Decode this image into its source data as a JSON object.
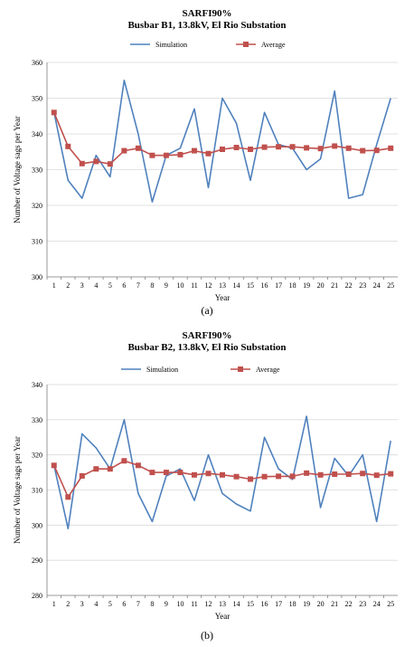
{
  "chart_data": [
    {
      "type": "line",
      "title": "SARFI90%",
      "subtitle": "Busbar B1, 13.8kV, El Rio Substation",
      "caption": "(a)",
      "xlabel": "Year",
      "ylabel": "Number of Voltage sags per Year",
      "x": [
        1,
        2,
        3,
        4,
        5,
        6,
        7,
        8,
        9,
        10,
        11,
        12,
        13,
        14,
        15,
        16,
        17,
        18,
        19,
        20,
        21,
        22,
        23,
        24,
        25
      ],
      "ylim": [
        300,
        360
      ],
      "yticks": [
        300,
        310,
        320,
        330,
        340,
        350,
        360
      ],
      "grid": "horizontal",
      "legend_position": "top",
      "series": [
        {
          "name": "Simulation",
          "color": "#4f81bd",
          "marker": "none",
          "values": [
            346,
            327,
            322,
            334,
            328,
            355,
            340,
            321,
            334,
            336,
            347,
            325,
            350,
            343,
            327,
            346,
            337,
            336,
            330,
            333,
            352,
            322,
            323,
            337,
            350
          ]
        },
        {
          "name": "Average",
          "color": "#c0504d",
          "marker": "square",
          "values": [
            346,
            336.5,
            331.7,
            332.3,
            331.6,
            335.3,
            336,
            334,
            334,
            334.2,
            335.3,
            334.5,
            335.7,
            336.2,
            335.7,
            336.3,
            336.4,
            336.4,
            336.1,
            335.9,
            336.6,
            336.0,
            335.3,
            335.4,
            336.0
          ]
        }
      ]
    },
    {
      "type": "line",
      "title": "SARFI90%",
      "subtitle": "Busbar B2, 13.8kV, El Rio Substation",
      "caption": "(b)",
      "xlabel": "Year",
      "ylabel": "Number of Voltage sags per Year",
      "x": [
        1,
        2,
        3,
        4,
        5,
        6,
        7,
        8,
        9,
        10,
        11,
        12,
        13,
        14,
        15,
        16,
        17,
        18,
        19,
        20,
        21,
        22,
        23,
        24,
        25
      ],
      "ylim": [
        280,
        340
      ],
      "yticks": [
        280,
        290,
        300,
        310,
        320,
        330,
        340
      ],
      "grid": "horizontal",
      "legend_position": "top",
      "series": [
        {
          "name": "Simulation",
          "color": "#4f81bd",
          "marker": "none",
          "values": [
            317,
            299,
            326,
            322,
            316,
            330,
            309,
            301,
            314,
            316,
            307,
            320,
            309,
            306,
            304,
            325,
            316,
            313,
            331,
            305,
            319,
            314,
            320,
            301,
            324
          ]
        },
        {
          "name": "Average",
          "color": "#c0504d",
          "marker": "square",
          "values": [
            317,
            308,
            314,
            316,
            316,
            318.3,
            317,
            315,
            315,
            315,
            314.3,
            314.7,
            314.3,
            313.8,
            313.1,
            313.8,
            313.9,
            313.9,
            314.8,
            314.3,
            314.5,
            314.5,
            314.7,
            314.2,
            314.6
          ]
        }
      ]
    }
  ]
}
